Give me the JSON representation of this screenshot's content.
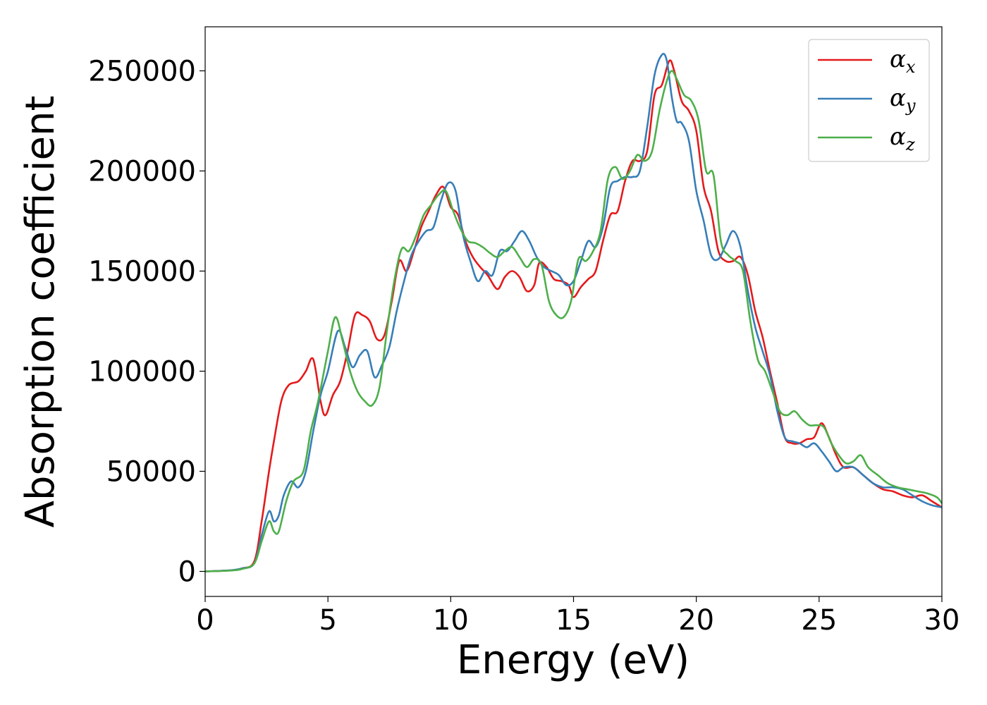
{
  "chart_data": {
    "type": "line",
    "title": "",
    "xlabel": "Energy (eV)",
    "ylabel": "Absorption coefficient",
    "xlim": [
      0,
      30
    ],
    "ylim": [
      -12500,
      272000
    ],
    "xticks": [
      0,
      5,
      10,
      15,
      20,
      25,
      30
    ],
    "yticks": [
      0,
      50000,
      100000,
      150000,
      200000,
      250000
    ],
    "xtick_labels": [
      "0",
      "5",
      "10",
      "15",
      "20",
      "25",
      "30"
    ],
    "ytick_labels": [
      "0",
      "50000",
      "100000",
      "150000",
      "200000",
      "250000"
    ],
    "grid": false,
    "legend_position": "top-right",
    "series": [
      {
        "name": "α_x",
        "legend_base": "α",
        "legend_sub": "x",
        "color": "#e41a1c",
        "x": [
          0,
          1,
          1.5,
          2,
          2.3,
          2.6,
          2.8,
          3.1,
          3.4,
          3.8,
          4.1,
          4.4,
          4.7,
          4.9,
          5.2,
          5.5,
          5.8,
          6.1,
          6.4,
          6.7,
          7.0,
          7.3,
          7.6,
          7.9,
          8.2,
          8.5,
          8.8,
          9.1,
          9.4,
          9.7,
          10.0,
          10.3,
          10.6,
          10.9,
          11.2,
          11.5,
          11.9,
          12.2,
          12.5,
          12.8,
          13.1,
          13.4,
          13.6,
          13.9,
          14.2,
          14.5,
          14.8,
          15.0,
          15.3,
          15.6,
          15.9,
          16.2,
          16.5,
          16.8,
          17.1,
          17.4,
          17.7,
          18.0,
          18.3,
          18.6,
          18.9,
          19.1,
          19.4,
          19.7,
          20.0,
          20.3,
          20.6,
          20.9,
          21.2,
          21.5,
          21.8,
          22.1,
          22.4,
          22.7,
          23.0,
          23.3,
          23.6,
          23.9,
          24.2,
          24.5,
          24.8,
          25.1,
          25.4,
          25.7,
          26.0,
          26.4,
          26.8,
          27.2,
          27.6,
          28.0,
          28.4,
          28.8,
          29.2,
          29.6,
          30.0
        ],
        "values": [
          0,
          500,
          1500,
          5000,
          25000,
          50000,
          65000,
          85000,
          93000,
          95000,
          100000,
          106000,
          85000,
          78000,
          88000,
          95000,
          110000,
          128000,
          128000,
          125000,
          116000,
          118000,
          135000,
          155000,
          150000,
          160000,
          172000,
          180000,
          188000,
          192000,
          182000,
          178000,
          165000,
          157000,
          152000,
          148000,
          141000,
          147000,
          150000,
          147000,
          140000,
          143000,
          154000,
          152000,
          146000,
          145000,
          143000,
          137000,
          142000,
          146000,
          150000,
          165000,
          178000,
          180000,
          195000,
          205000,
          205000,
          210000,
          238000,
          243000,
          255000,
          250000,
          235000,
          230000,
          220000,
          192000,
          180000,
          160000,
          155000,
          155000,
          157000,
          148000,
          130000,
          117000,
          100000,
          84000,
          67000,
          64000,
          64000,
          66000,
          67000,
          74000,
          67000,
          58000,
          52000,
          52000,
          48000,
          44000,
          41000,
          40000,
          38000,
          37000,
          38000,
          35000,
          32000
        ]
      },
      {
        "name": "α_y",
        "legend_base": "α",
        "legend_sub": "y",
        "color": "#377eb8",
        "x": [
          0,
          1,
          1.5,
          2,
          2.3,
          2.6,
          2.8,
          3.0,
          3.2,
          3.5,
          3.8,
          4.1,
          4.4,
          4.7,
          5.0,
          5.4,
          5.7,
          6.0,
          6.3,
          6.6,
          6.9,
          7.2,
          7.5,
          7.8,
          8.1,
          8.4,
          8.7,
          9.0,
          9.3,
          9.6,
          9.9,
          10.2,
          10.5,
          10.8,
          11.1,
          11.4,
          11.7,
          12.0,
          12.3,
          12.6,
          12.9,
          13.2,
          13.5,
          13.8,
          14.1,
          14.4,
          14.7,
          15.0,
          15.3,
          15.6,
          15.9,
          16.2,
          16.5,
          16.8,
          17.1,
          17.4,
          17.7,
          18.0,
          18.3,
          18.6,
          18.8,
          19.0,
          19.2,
          19.4,
          19.7,
          20.0,
          20.3,
          20.6,
          20.9,
          21.2,
          21.5,
          21.8,
          22.1,
          22.4,
          22.7,
          23.0,
          23.3,
          23.6,
          23.9,
          24.2,
          24.5,
          24.8,
          25.1,
          25.4,
          25.7,
          26.0,
          26.4,
          26.8,
          27.2,
          27.6,
          28.0,
          28.4,
          28.8,
          29.2,
          29.6,
          30.0
        ],
        "values": [
          0,
          500,
          1500,
          4000,
          18000,
          30000,
          25000,
          28000,
          38000,
          45000,
          42000,
          50000,
          70000,
          88000,
          100000,
          120000,
          112000,
          102000,
          108000,
          110000,
          97000,
          103000,
          112000,
          130000,
          145000,
          158000,
          165000,
          170000,
          172000,
          185000,
          194000,
          190000,
          168000,
          155000,
          145000,
          150000,
          148000,
          160000,
          160000,
          165000,
          170000,
          165000,
          157000,
          152000,
          150000,
          148000,
          143000,
          145000,
          155000,
          165000,
          162000,
          172000,
          192000,
          195000,
          197000,
          197000,
          200000,
          222000,
          248000,
          258000,
          255000,
          237000,
          225000,
          224000,
          215000,
          190000,
          175000,
          158000,
          156000,
          163000,
          170000,
          162000,
          140000,
          122000,
          110000,
          98000,
          80000,
          67000,
          65000,
          64000,
          62000,
          64000,
          60000,
          55000,
          50000,
          52000,
          52000,
          48000,
          44000,
          42000,
          42000,
          41000,
          38000,
          35000,
          33000,
          32000
        ]
      },
      {
        "name": "α_z",
        "legend_base": "α",
        "legend_sub": "z",
        "color": "#4daf4a",
        "x": [
          0,
          1,
          1.5,
          2,
          2.3,
          2.6,
          2.8,
          3.0,
          3.3,
          3.6,
          4.0,
          4.3,
          4.6,
          5.0,
          5.3,
          5.6,
          5.9,
          6.2,
          6.5,
          6.8,
          7.1,
          7.4,
          7.7,
          8.0,
          8.3,
          8.6,
          8.9,
          9.2,
          9.5,
          9.8,
          10.1,
          10.4,
          10.7,
          11.0,
          11.3,
          11.6,
          11.9,
          12.2,
          12.5,
          12.8,
          13.1,
          13.4,
          13.7,
          14.0,
          14.3,
          14.6,
          14.9,
          15.2,
          15.5,
          15.8,
          16.1,
          16.4,
          16.7,
          17.0,
          17.3,
          17.6,
          17.9,
          18.2,
          18.5,
          18.8,
          19.0,
          19.2,
          19.5,
          19.8,
          20.1,
          20.4,
          20.7,
          21.0,
          21.3,
          21.6,
          21.9,
          22.2,
          22.5,
          22.8,
          23.1,
          23.4,
          23.7,
          24.0,
          24.3,
          24.6,
          24.9,
          25.2,
          25.5,
          25.8,
          26.1,
          26.4,
          26.7,
          27.0,
          27.4,
          27.8,
          28.2,
          28.6,
          29.0,
          29.4,
          29.8,
          30.0
        ],
        "values": [
          0,
          400,
          1200,
          4000,
          15000,
          25000,
          20000,
          20000,
          35000,
          45000,
          50000,
          70000,
          85000,
          110000,
          127000,
          115000,
          100000,
          90000,
          85000,
          83000,
          92000,
          120000,
          145000,
          161000,
          160000,
          168000,
          178000,
          183000,
          188000,
          190000,
          180000,
          171000,
          165000,
          164000,
          162000,
          159000,
          157000,
          160000,
          162000,
          157000,
          152000,
          156000,
          153000,
          135000,
          128000,
          127000,
          135000,
          156000,
          155000,
          160000,
          170000,
          196000,
          202000,
          196000,
          200000,
          208000,
          205000,
          210000,
          230000,
          245000,
          250000,
          246000,
          238000,
          235000,
          225000,
          200000,
          198000,
          165000,
          158000,
          155000,
          150000,
          125000,
          106000,
          100000,
          90000,
          80000,
          78000,
          80000,
          76000,
          73000,
          73000,
          72000,
          64000,
          58000,
          54000,
          55000,
          58000,
          52000,
          48000,
          44000,
          42000,
          41000,
          40000,
          39000,
          37000,
          34000
        ]
      }
    ]
  }
}
